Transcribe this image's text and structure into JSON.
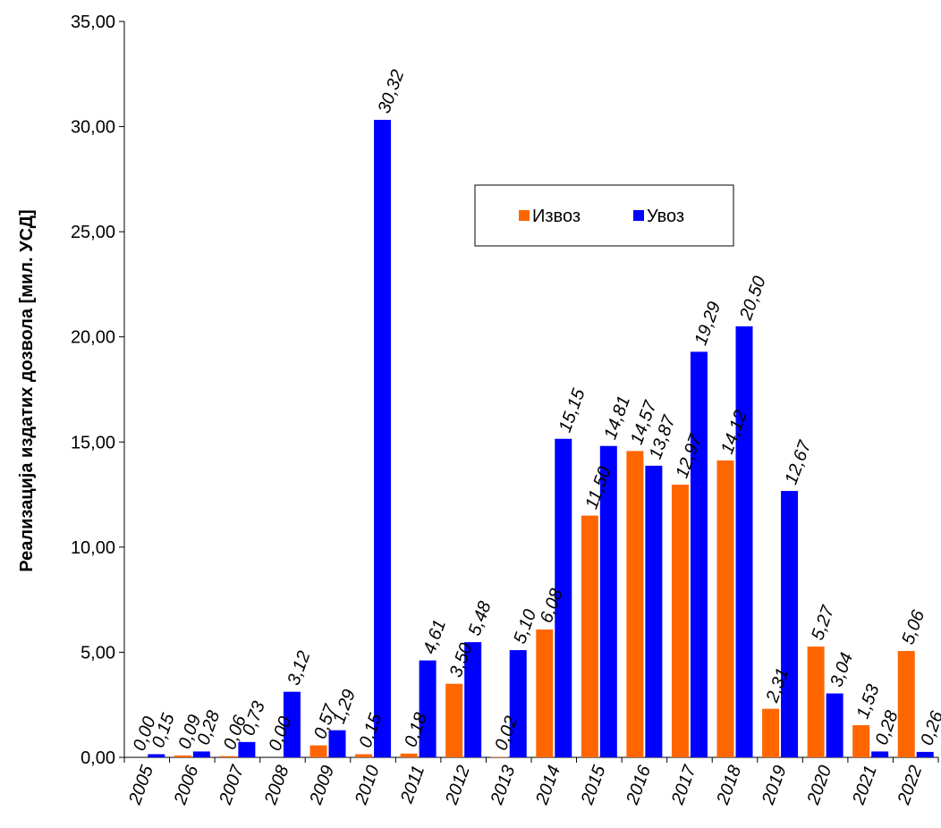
{
  "chart_data": {
    "type": "bar",
    "ylabel": "Реализација издатих дозвола [мил. УСД]",
    "xlabel": "",
    "title": "",
    "ylim": [
      0,
      35
    ],
    "yticks": [
      "0,00",
      "5,00",
      "10,00",
      "15,00",
      "20,00",
      "25,00",
      "30,00",
      "35,00"
    ],
    "ytick_values": [
      0,
      5,
      10,
      15,
      20,
      25,
      30,
      35
    ],
    "grid": false,
    "legend_position": "top-right",
    "categories": [
      "2005",
      "2006",
      "2007",
      "2008",
      "2009",
      "2010",
      "2011",
      "2012",
      "2013",
      "2014",
      "2015",
      "2016",
      "2017",
      "2018",
      "2019",
      "2020",
      "2021",
      "2022"
    ],
    "series": [
      {
        "name": "Извоз",
        "color": "#ff6600",
        "values": [
          0.0,
          0.09,
          0.06,
          0.0,
          0.57,
          0.15,
          0.18,
          3.5,
          0.02,
          6.08,
          11.5,
          14.57,
          12.97,
          14.12,
          2.31,
          5.27,
          1.53,
          5.06
        ],
        "labels": [
          "0,00",
          "0,09",
          "0,06",
          "0,00",
          "0,57",
          "0,15",
          "0,18",
          "3,50",
          "0,02",
          "6,08",
          "11,50",
          "14,57",
          "12,97",
          "14,12",
          "2,31",
          "5,27",
          "1,53",
          "5,06"
        ]
      },
      {
        "name": "Увоз",
        "color": "#0000ff",
        "values": [
          0.15,
          0.28,
          0.73,
          3.12,
          1.29,
          30.32,
          4.61,
          5.48,
          5.1,
          15.15,
          14.81,
          13.87,
          19.29,
          20.5,
          12.67,
          3.04,
          0.28,
          0.26
        ],
        "labels": [
          "0,15",
          "0,28",
          "0,73",
          "3,12",
          "1,29",
          "30,32",
          "4,61",
          "5,48",
          "5,10",
          "15,15",
          "14,81",
          "13,87",
          "19,29",
          "20,50",
          "12,67",
          "3,04",
          "0,28",
          "0,26"
        ]
      }
    ]
  }
}
